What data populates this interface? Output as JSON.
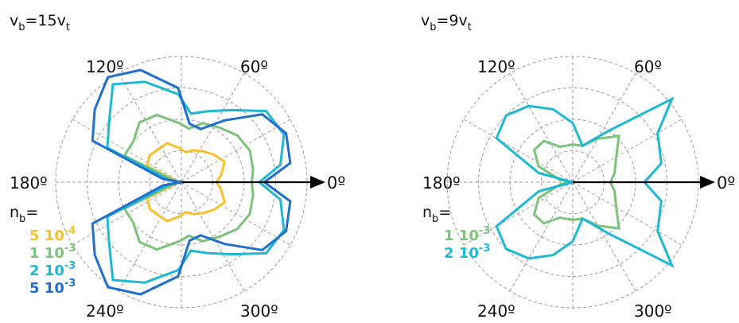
{
  "chart_data": [
    {
      "type": "polar-line",
      "title": {
        "main": "v",
        "sub1": "b",
        "mid": "=15v",
        "sub2": "t"
      },
      "angle_labels": {
        "0": "0º",
        "60": "60º",
        "120": "120º",
        "180": "180º",
        "240": "240º",
        "300": "300º"
      },
      "rlim": [
        0,
        1
      ],
      "grid": true,
      "legend": {
        "title_main": "n",
        "title_sub": "b",
        "title_suffix": "=",
        "entries": [
          {
            "num": "5 10",
            "exp": "-4",
            "color": "#f7c12a"
          },
          {
            "num": "1 10",
            "exp": "-3",
            "color": "#7cc27a"
          },
          {
            "num": "2 10",
            "exp": "-3",
            "color": "#1cb8d4"
          },
          {
            "num": "5 10",
            "exp": "-3",
            "color": "#1f6fd0"
          }
        ]
      },
      "series": [
        {
          "color": "#f7c12a",
          "points": [
            [
              0,
              0.28
            ],
            [
              10,
              0.32
            ],
            [
              25,
              0.38
            ],
            [
              40,
              0.34
            ],
            [
              55,
              0.3
            ],
            [
              70,
              0.27
            ],
            [
              82,
              0.24
            ],
            [
              92,
              0.27
            ],
            [
              110,
              0.33
            ],
            [
              125,
              0.32
            ],
            [
              140,
              0.33
            ],
            [
              155,
              0.3
            ],
            [
              170,
              0.03
            ],
            [
              180,
              0.0
            ]
          ]
        },
        {
          "color": "#7cc27a",
          "points": [
            [
              0,
              0.56
            ],
            [
              10,
              0.58
            ],
            [
              25,
              0.6
            ],
            [
              40,
              0.58
            ],
            [
              55,
              0.53
            ],
            [
              70,
              0.5
            ],
            [
              82,
              0.43
            ],
            [
              92,
              0.47
            ],
            [
              110,
              0.57
            ],
            [
              125,
              0.58
            ],
            [
              140,
              0.5
            ],
            [
              155,
              0.5
            ],
            [
              170,
              0.05
            ],
            [
              180,
              0.0
            ]
          ]
        },
        {
          "color": "#1cb8d4",
          "points": [
            [
              0,
              0.62
            ],
            [
              10,
              0.8
            ],
            [
              25,
              0.9
            ],
            [
              40,
              0.88
            ],
            [
              55,
              0.7
            ],
            [
              70,
              0.6
            ],
            [
              82,
              0.55
            ],
            [
              92,
              0.7
            ],
            [
              110,
              0.85
            ],
            [
              125,
              0.95
            ],
            [
              140,
              0.75
            ],
            [
              155,
              0.65
            ],
            [
              170,
              0.1
            ],
            [
              180,
              0.0
            ]
          ]
        },
        {
          "color": "#1f6fd0",
          "points": [
            [
              0,
              0.66
            ],
            [
              10,
              0.88
            ],
            [
              25,
              0.92
            ],
            [
              40,
              0.84
            ],
            [
              55,
              0.6
            ],
            [
              70,
              0.45
            ],
            [
              82,
              0.47
            ],
            [
              92,
              0.75
            ],
            [
              110,
              0.95
            ],
            [
              125,
              1.02
            ],
            [
              140,
              0.9
            ],
            [
              155,
              0.78
            ],
            [
              170,
              0.15
            ],
            [
              180,
              0.0
            ]
          ]
        }
      ]
    },
    {
      "type": "polar-line",
      "title": {
        "main": "v",
        "sub1": "b",
        "mid": "=9v",
        "sub2": "t"
      },
      "angle_labels": {
        "0": "0º",
        "60": "60º",
        "120": "120º",
        "180": "180º",
        "240": "240º",
        "300": "300º"
      },
      "rlim": [
        0,
        1
      ],
      "grid": true,
      "legend": {
        "title_main": "n",
        "title_sub": "b",
        "title_suffix": "=",
        "entries": [
          {
            "num": "1 10",
            "exp": "-3",
            "color": "#7cc27a"
          },
          {
            "num": "2 10",
            "exp": "-3",
            "color": "#1cb8d4"
          }
        ]
      },
      "series": [
        {
          "color": "#7cc27a",
          "points": [
            [
              0,
              0.3
            ],
            [
              12,
              0.34
            ],
            [
              30,
              0.4
            ],
            [
              45,
              0.52
            ],
            [
              60,
              0.4
            ],
            [
              75,
              0.3
            ],
            [
              90,
              0.3
            ],
            [
              110,
              0.3
            ],
            [
              125,
              0.4
            ],
            [
              140,
              0.4
            ],
            [
              155,
              0.3
            ],
            [
              170,
              0.1
            ],
            [
              180,
              0.0
            ]
          ]
        },
        {
          "color": "#1cb8d4",
          "points": [
            [
              0,
              0.57
            ],
            [
              12,
              0.72
            ],
            [
              30,
              0.78
            ],
            [
              40,
              1.03
            ],
            [
              55,
              0.5
            ],
            [
              75,
              0.3
            ],
            [
              90,
              0.47
            ],
            [
              105,
              0.6
            ],
            [
              120,
              0.7
            ],
            [
              135,
              0.75
            ],
            [
              150,
              0.7
            ],
            [
              165,
              0.28
            ],
            [
              180,
              0.0
            ]
          ]
        }
      ]
    }
  ]
}
